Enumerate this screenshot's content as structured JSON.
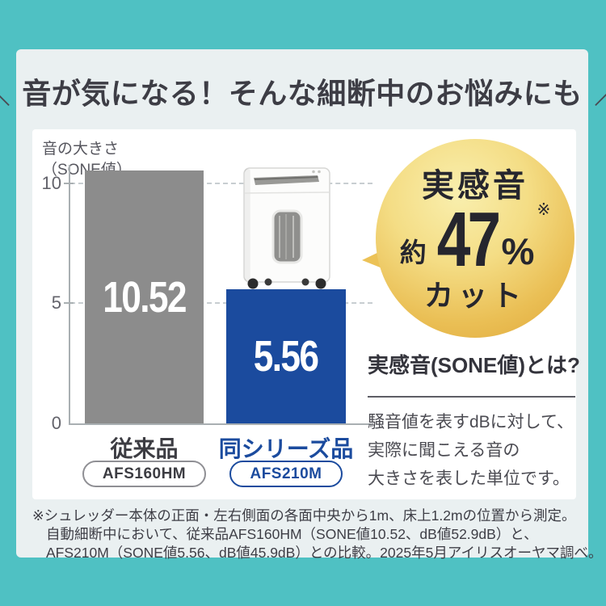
{
  "colors": {
    "frame_teal": "#4fc1c3",
    "panel_background": "#eaf0f1",
    "card_background": "#ffffff",
    "bar_gray": "#8c8c8c",
    "bar_blue": "#1b4b9e",
    "badge_gold_light": "#f9efae",
    "badge_gold_dark": "#dfa637",
    "badge_text": "#26262e"
  },
  "title": {
    "slash_left": "＼",
    "text": "音が気になる！そんな細断中のお悩みにも",
    "slash_right": "／"
  },
  "chart_data": {
    "type": "bar",
    "ylabel": "音の大きさ（SONE値）",
    "ylabel_lines": [
      "音の大きさ",
      "（SONE値）"
    ],
    "yticks": [
      "10",
      "5",
      "0"
    ],
    "ylim": [
      0,
      10.8
    ],
    "grid": "dashed horizontal gridlines at y=5 and y=10",
    "legend_position": "none",
    "categories": [
      "従来品",
      "同シリーズ品"
    ],
    "models": [
      "AFS160HM",
      "AFS210M"
    ],
    "series": [
      {
        "name": "SONE値",
        "values": [
          10.52,
          5.56
        ]
      }
    ],
    "value_labels": [
      "10.52",
      "5.56"
    ],
    "bar_colors": [
      "#8c8c8c",
      "#1b4b9e"
    ]
  },
  "badge": {
    "top": "実感音",
    "approx": "約",
    "value": "47",
    "unit": "%",
    "note_mark": "※",
    "bottom": "カット"
  },
  "info": {
    "heading": "実感音(SONE値)とは?",
    "body_lines": [
      "騒音値を表すdBに対して、",
      "実際に聞こえる音の",
      "大きさを表した単位です。"
    ]
  },
  "footnotes": [
    "※シュレッダー本体の正面・左右側面の各面中央から1m、床上1.2mの位置から測定。",
    "自動細断中において、従来品AFS160HM（SONE値10.52、dB値52.9dB）と、",
    "AFS210M（SONE値5.56、dB値45.9dB）との比較。2025年5月アイリスオーヤマ調べ。"
  ],
  "product_image": "paper-shredder-front-view"
}
